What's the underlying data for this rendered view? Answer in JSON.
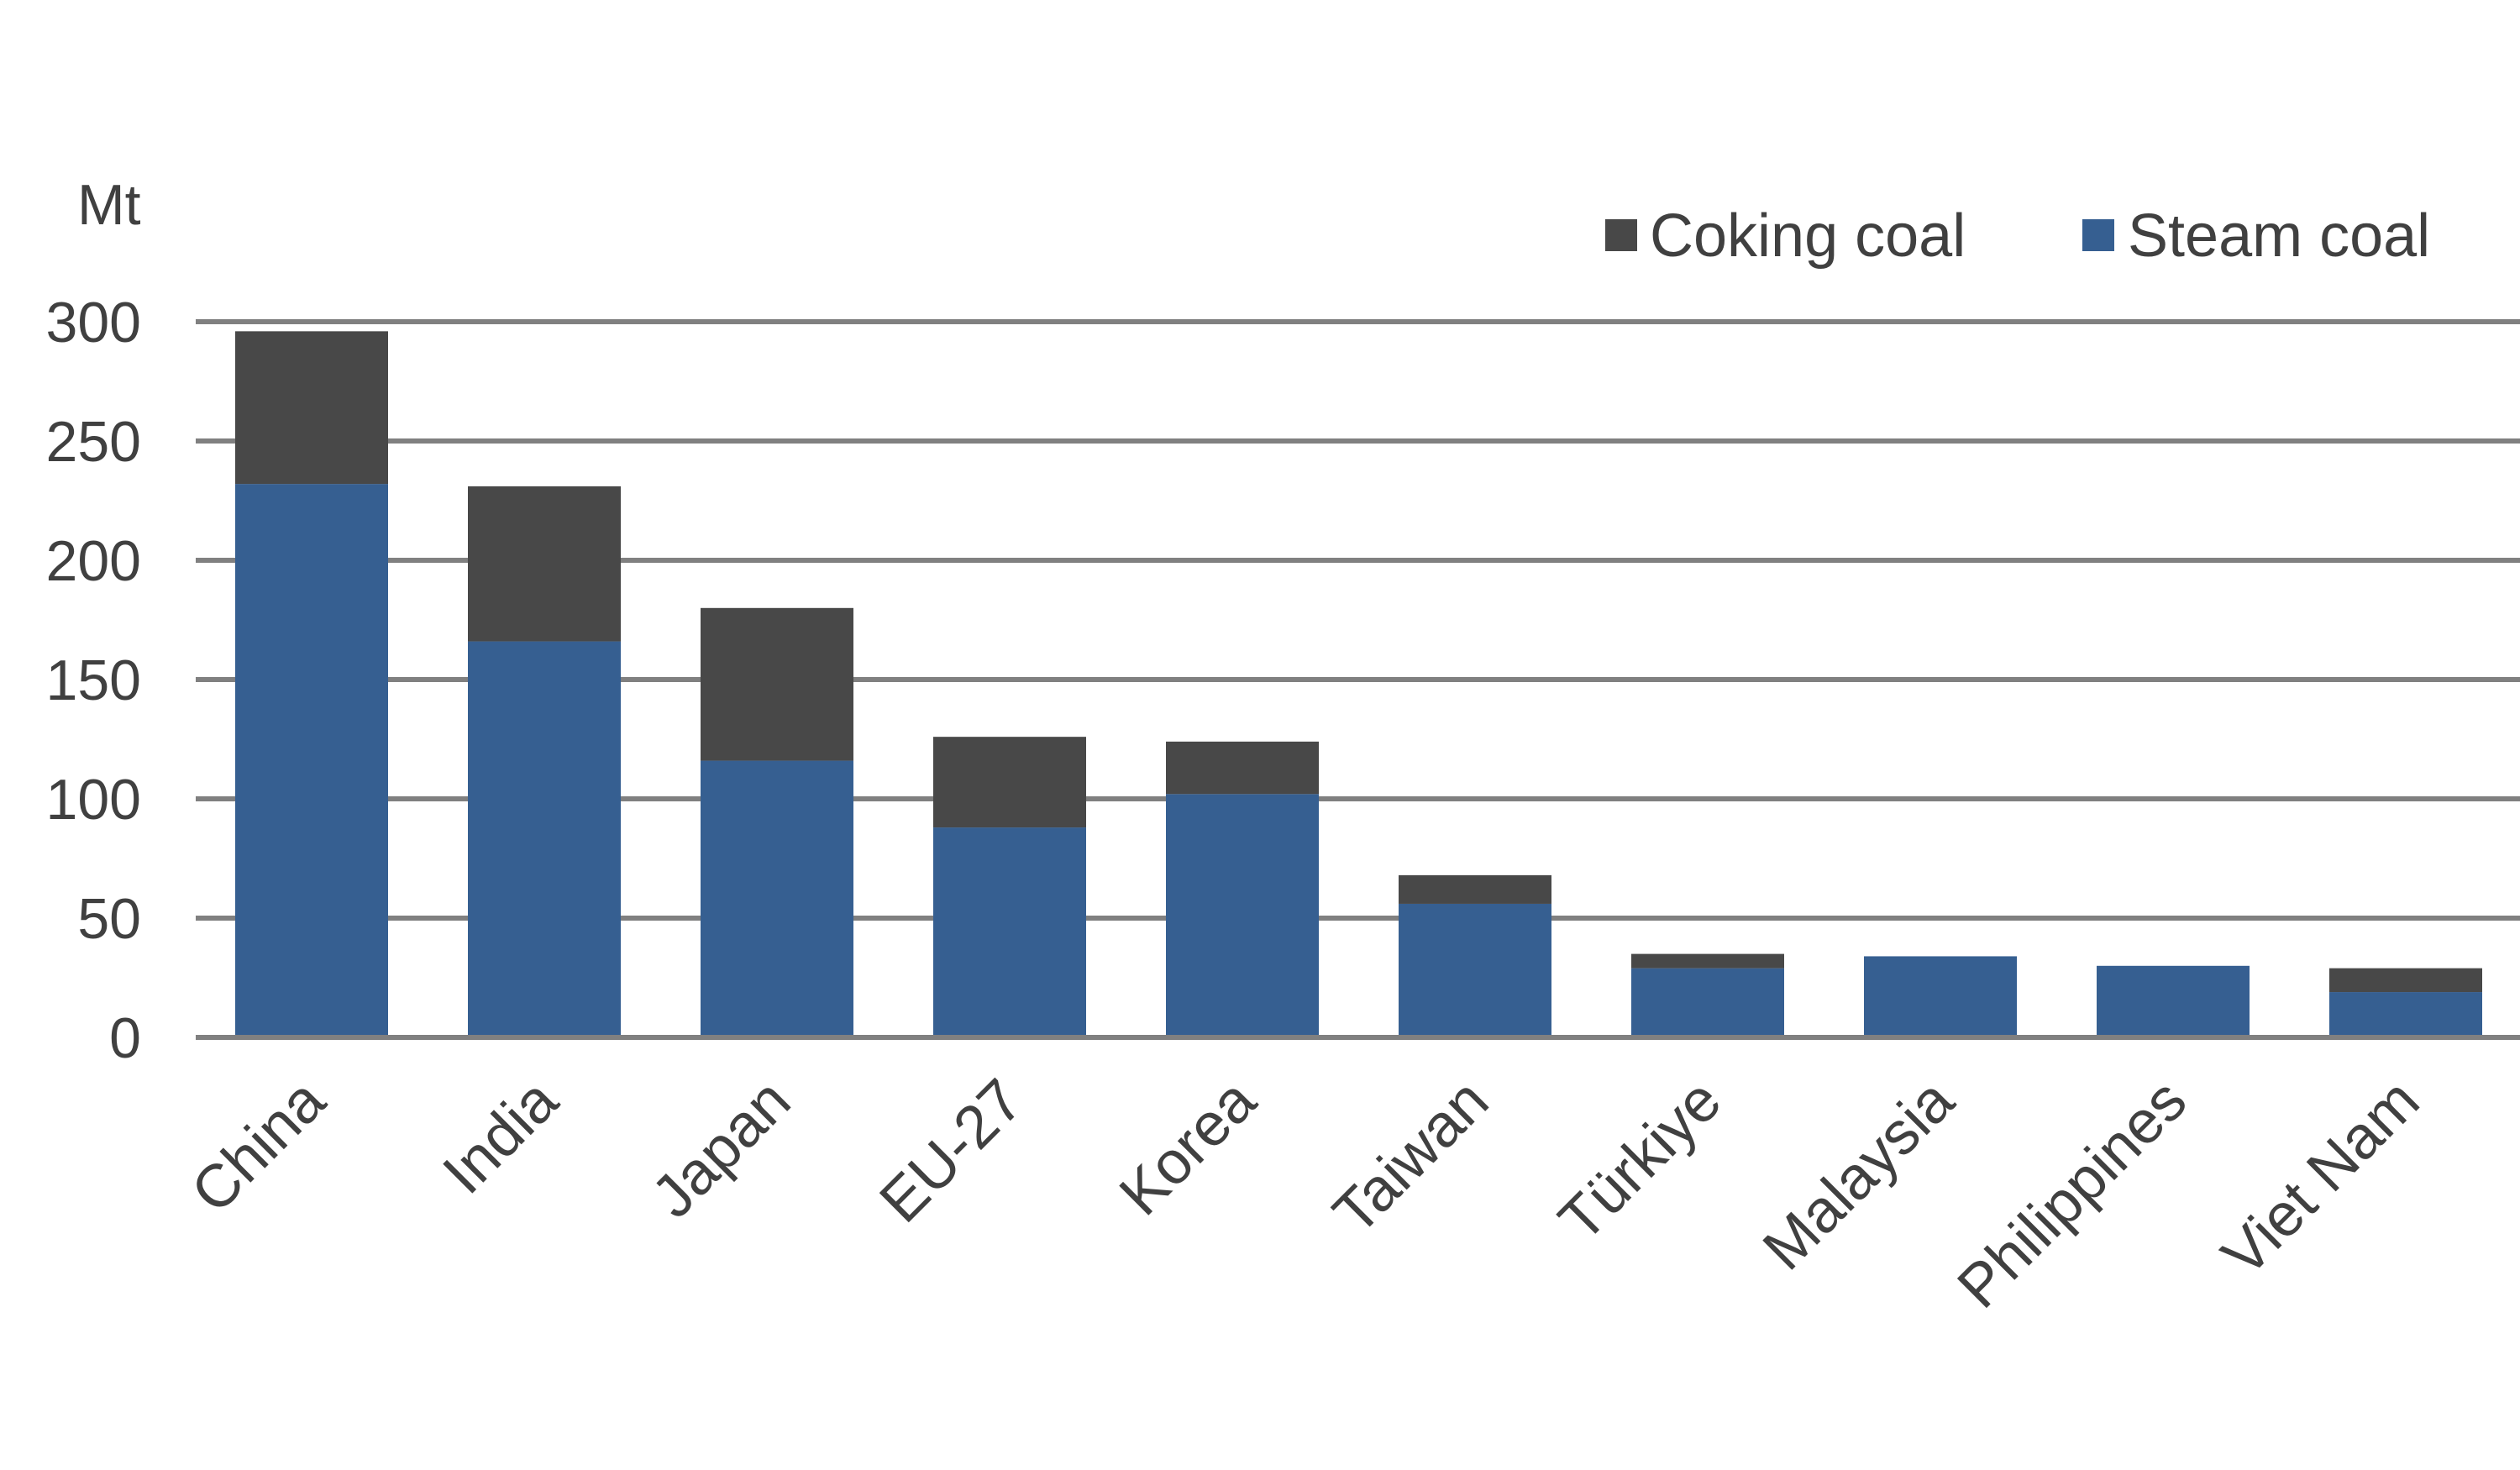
{
  "chart_data": {
    "type": "bar",
    "stacked": true,
    "orientation": "vertical",
    "unit": "Mt",
    "categories": [
      "China",
      "India",
      "Japan",
      "EU-27",
      "Korea",
      "Taiwan",
      "Türkiye",
      "Malaysia",
      "Philippines",
      "Viet Nam"
    ],
    "series": [
      {
        "name": "Steam coal",
        "color": "#365F91",
        "values": [
          232,
          166,
          116,
          88,
          102,
          56,
          29,
          34,
          30,
          19
        ]
      },
      {
        "name": "Coking coal",
        "color": "#484848",
        "values": [
          64,
          65,
          64,
          38,
          22,
          12,
          6,
          0,
          0,
          10
        ]
      }
    ],
    "legend_order": [
      "Coking coal",
      "Steam coal"
    ],
    "legend_position": "top-right",
    "yticks": [
      "0",
      "50",
      "100",
      "150",
      "200",
      "250",
      "300"
    ],
    "ylim": [
      0,
      300
    ],
    "grid": true,
    "gridline_color": "#808080",
    "text_color": "#404040",
    "category_label_rotation": -45
  }
}
